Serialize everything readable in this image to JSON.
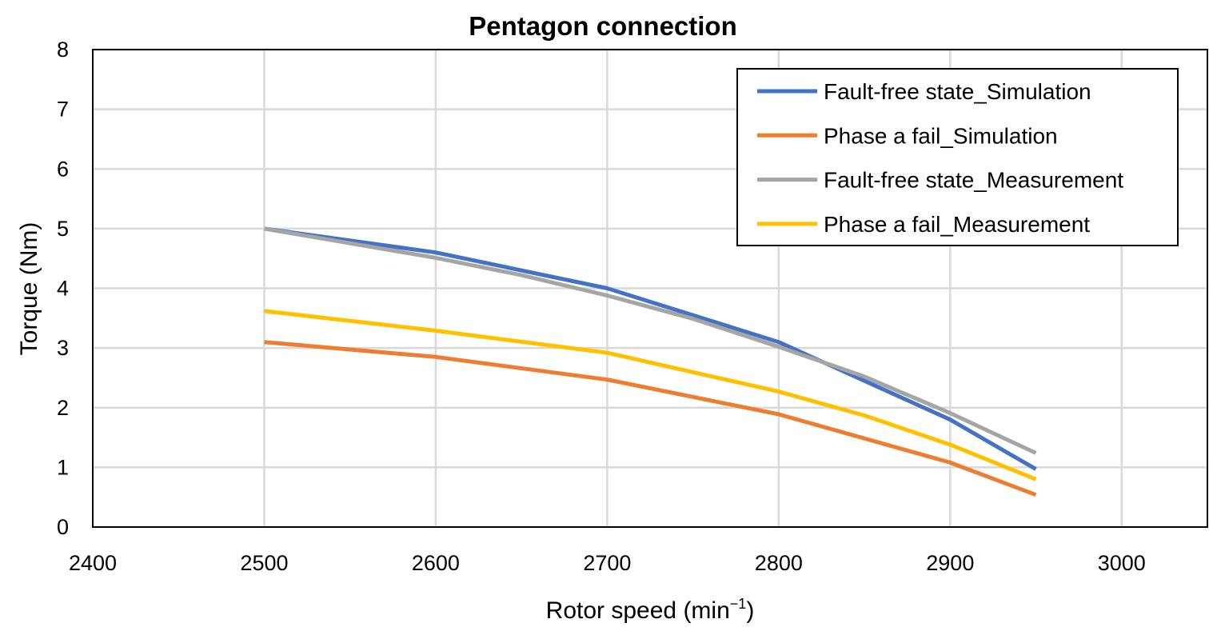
{
  "chart_data": {
    "type": "line",
    "title": "Pentagon connection",
    "xlabel": "Rotor speed (min",
    "xlabel_sup": "−1",
    "xlabel_close": ")",
    "ylabel": "Torque (Nm)",
    "xlim": [
      2400,
      3050
    ],
    "ylim": [
      0,
      8
    ],
    "xticks": [
      2400,
      2500,
      2600,
      2700,
      2800,
      2900,
      3000
    ],
    "yticks": [
      0,
      1,
      2,
      3,
      4,
      5,
      6,
      7,
      8
    ],
    "grid": true,
    "legend_position": "top-right",
    "series": [
      {
        "name": "Fault-free state_Simulation",
        "color": "#4472C4",
        "x": [
          2500,
          2600,
          2700,
          2750,
          2800,
          2850,
          2900,
          2950
        ],
        "y": [
          5.0,
          4.6,
          4.0,
          3.55,
          3.1,
          2.45,
          1.8,
          0.97
        ]
      },
      {
        "name": "Phase a fail_Simulation",
        "color": "#ED7D31",
        "x": [
          2500,
          2600,
          2700,
          2800,
          2900,
          2950
        ],
        "y": [
          3.1,
          2.85,
          2.47,
          1.89,
          1.08,
          0.54
        ]
      },
      {
        "name": "Fault-free state_Measurement",
        "color": "#A5A5A5",
        "x": [
          2500,
          2600,
          2650,
          2700,
          2750,
          2800,
          2850,
          2900,
          2950
        ],
        "y": [
          5.0,
          4.51,
          4.22,
          3.88,
          3.49,
          3.02,
          2.52,
          1.91,
          1.24
        ]
      },
      {
        "name": "Phase a fail_Measurement",
        "color": "#FFC000",
        "x": [
          2500,
          2600,
          2700,
          2800,
          2850,
          2900,
          2950
        ],
        "y": [
          3.62,
          3.29,
          2.92,
          2.27,
          1.87,
          1.38,
          0.8
        ]
      }
    ]
  }
}
